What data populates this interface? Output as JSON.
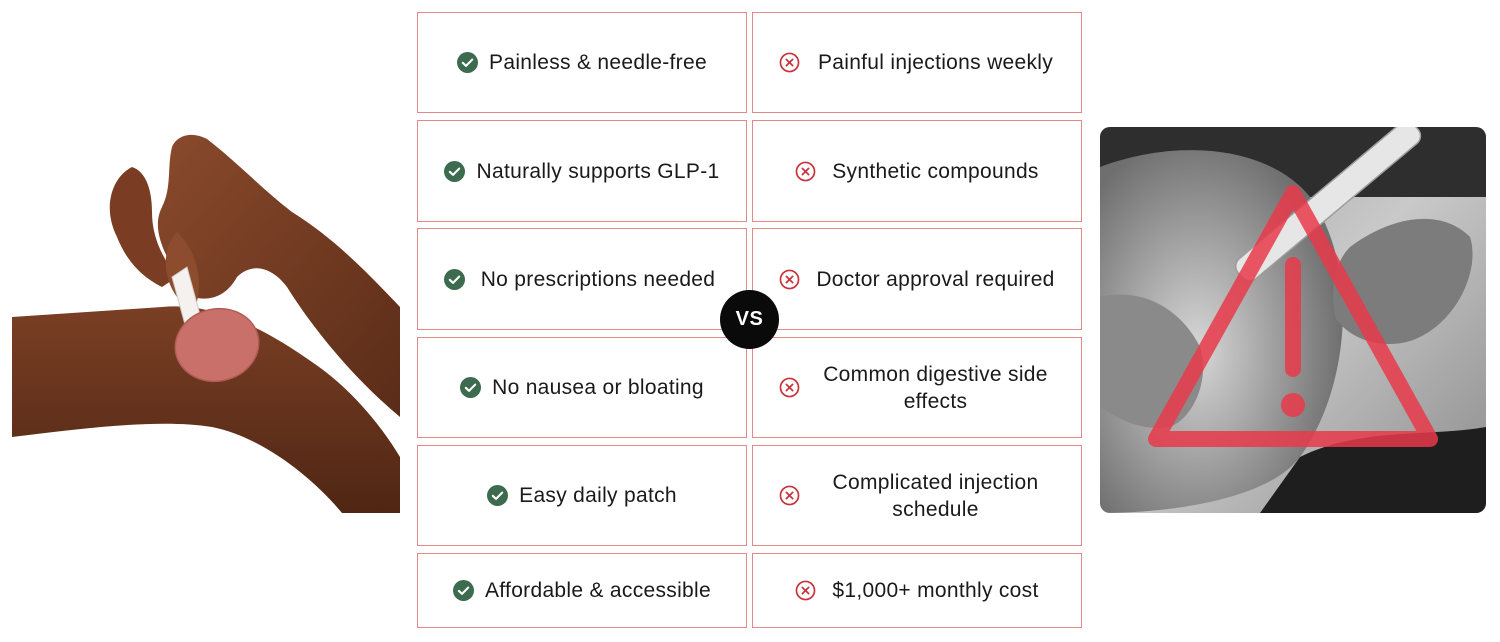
{
  "comparison": {
    "vs_label": "VS",
    "colors": {
      "pro_icon": "#3d6b4f",
      "con_icon": "#c8323a",
      "cell_border": "#e3898b",
      "warning": "#e8394a"
    },
    "pros": [
      {
        "label": "Painless & needle-free",
        "icon": "check-circle-icon"
      },
      {
        "label": "Naturally supports GLP-1",
        "icon": "check-circle-icon"
      },
      {
        "label": "No prescriptions needed",
        "icon": "check-circle-icon"
      },
      {
        "label": "No nausea or bloating",
        "icon": "check-circle-icon"
      },
      {
        "label": "Easy daily patch",
        "icon": "check-circle-icon"
      },
      {
        "label": "Affordable & accessible",
        "icon": "check-circle-icon"
      }
    ],
    "cons": [
      {
        "label": "Painful injections weekly",
        "icon": "x-circle-icon"
      },
      {
        "label": "Synthetic compounds",
        "icon": "x-circle-icon"
      },
      {
        "label": "Doctor approval required",
        "icon": "x-circle-icon"
      },
      {
        "label": "Common digestive side effects",
        "icon": "x-circle-icon"
      },
      {
        "label": "Complicated injection schedule",
        "icon": "x-circle-icon"
      },
      {
        "label": "$1,000+ monthly cost",
        "icon": "x-circle-icon"
      }
    ]
  },
  "images": {
    "left": "hand-applying-patch-photo",
    "right": "injection-pen-with-warning-photo"
  }
}
